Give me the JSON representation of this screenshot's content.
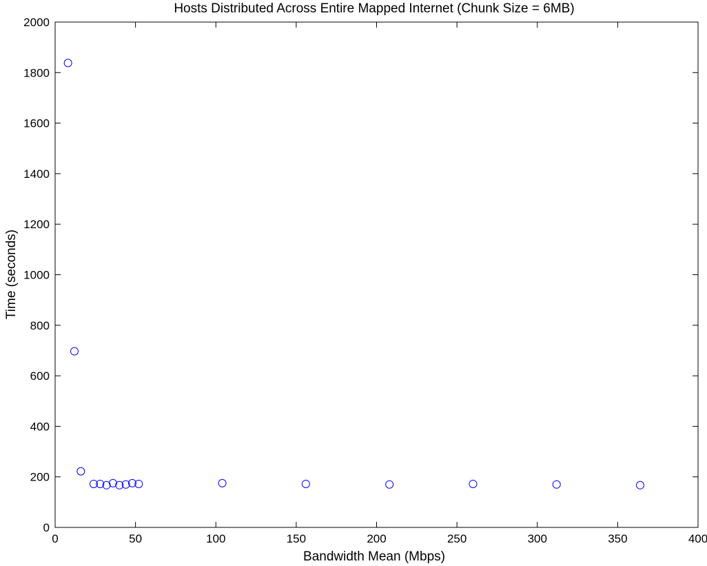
{
  "chart_data": {
    "type": "scatter",
    "title": "Hosts Distributed Across Entire Mapped Internet (Chunk Size = 6MB)",
    "xlabel": "Bandwidth Mean (Mbps)",
    "ylabel": "Time (seconds)",
    "xlim": [
      0,
      400
    ],
    "ylim": [
      0,
      2000
    ],
    "x_ticks": [
      "0",
      "50",
      "100",
      "150",
      "200",
      "250",
      "300",
      "350",
      "400"
    ],
    "y_ticks": [
      "0",
      "200",
      "400",
      "600",
      "800",
      "1000",
      "1200",
      "1400",
      "1600",
      "1800",
      "2000"
    ],
    "grid": false,
    "marker": "open-circle",
    "series": [
      {
        "color": "#0000ff",
        "points": [
          {
            "x": 8,
            "y": 1838
          },
          {
            "x": 12,
            "y": 697
          },
          {
            "x": 16,
            "y": 222
          },
          {
            "x": 24,
            "y": 172
          },
          {
            "x": 28,
            "y": 172
          },
          {
            "x": 32,
            "y": 167
          },
          {
            "x": 36,
            "y": 175
          },
          {
            "x": 40,
            "y": 167
          },
          {
            "x": 44,
            "y": 170
          },
          {
            "x": 48,
            "y": 175
          },
          {
            "x": 52,
            "y": 172
          },
          {
            "x": 104,
            "y": 175
          },
          {
            "x": 156,
            "y": 172
          },
          {
            "x": 208,
            "y": 170
          },
          {
            "x": 260,
            "y": 172
          },
          {
            "x": 312,
            "y": 170
          },
          {
            "x": 364,
            "y": 167
          }
        ]
      }
    ]
  }
}
